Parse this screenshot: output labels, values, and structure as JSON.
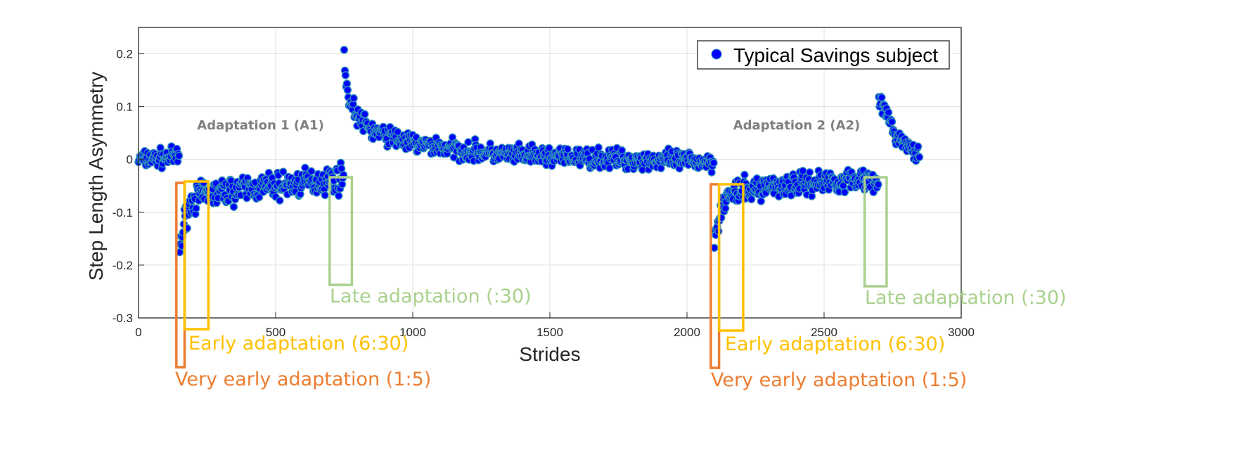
{
  "chart_data": {
    "type": "scatter",
    "xlabel": "Strides",
    "ylabel": "Step Length Asymmetry",
    "xlim": [
      0,
      3000
    ],
    "ylim": [
      -0.3,
      0.25
    ],
    "xticks": [
      0,
      500,
      1000,
      1500,
      2000,
      2500,
      3000
    ],
    "yticks": [
      0.2,
      0.1,
      0,
      -0.1,
      -0.2,
      -0.3
    ],
    "xtick_labels": [
      "0",
      "500",
      "1000",
      "1500",
      "2000",
      "2500",
      "3000"
    ],
    "ytick_labels": [
      "0.2",
      "0.1",
      "0",
      "-0.1",
      "-0.2",
      "-0.3"
    ],
    "grid": true,
    "legend_position": "top-right",
    "marker_fill": "#0000ff",
    "marker_edge": "#2f8fb8",
    "series": [
      {
        "name": "Typical Savings subject",
        "segments": [
          {
            "phase": "baseline",
            "x_start": 0,
            "x_end": 150,
            "trend": [
              [
                0,
                0.0
              ],
              [
                150,
                0.005
              ]
            ],
            "noise": 0.012
          },
          {
            "phase": "adaptation-1",
            "x_start": 150,
            "x_end": 750,
            "trend": [
              [
                150,
                -0.17
              ],
              [
                160,
                -0.14
              ],
              [
                175,
                -0.1
              ],
              [
                200,
                -0.075
              ],
              [
                260,
                -0.065
              ],
              [
                400,
                -0.055
              ],
              [
                600,
                -0.045
              ],
              [
                750,
                -0.035
              ]
            ],
            "noise": 0.018
          },
          {
            "phase": "post-adaptation-1",
            "x_start": 750,
            "x_end": 2100,
            "trend": [
              [
                750,
                0.2
              ],
              [
                755,
                0.165
              ],
              [
                765,
                0.115
              ],
              [
                800,
                0.08
              ],
              [
                850,
                0.055
              ],
              [
                1000,
                0.03
              ],
              [
                1300,
                0.01
              ],
              [
                1600,
                0.003
              ],
              [
                2100,
                -0.005
              ]
            ],
            "noise": 0.013
          },
          {
            "phase": "adaptation-2",
            "x_start": 2100,
            "x_end": 2700,
            "trend": [
              [
                2100,
                -0.15
              ],
              [
                2110,
                -0.12
              ],
              [
                2130,
                -0.085
              ],
              [
                2160,
                -0.065
              ],
              [
                2300,
                -0.05
              ],
              [
                2500,
                -0.042
              ],
              [
                2700,
                -0.035
              ]
            ],
            "noise": 0.016
          },
          {
            "phase": "post-adaptation-2",
            "x_start": 2700,
            "x_end": 2850,
            "trend": [
              [
                2700,
                0.115
              ],
              [
                2720,
                0.095
              ],
              [
                2760,
                0.045
              ],
              [
                2850,
                0.005
              ]
            ],
            "noise": 0.01
          }
        ]
      }
    ],
    "annotations": [
      {
        "text": "Adaptation 1 (A1)",
        "x": 445,
        "y": 0.065,
        "color": "#7f7f7f"
      },
      {
        "text": "Adaptation 2 (A2)",
        "x": 2400,
        "y": 0.065,
        "color": "#7f7f7f"
      }
    ],
    "windows": [
      {
        "label": "Very early adaptation (1:5)",
        "color": "#ed7d31",
        "x_start": 138,
        "x_end": 168,
        "group": "A1"
      },
      {
        "label": "Early adaptation (6:30)",
        "color": "#ffc000",
        "x_start": 168,
        "x_end": 255,
        "group": "A1"
      },
      {
        "label": "Late adaptation (:30)",
        "color": "#a9d18e",
        "x_start": 697,
        "x_end": 778,
        "group": "A1"
      },
      {
        "label": "Very early adaptation (1:5)",
        "color": "#ed7d31",
        "x_start": 2087,
        "x_end": 2117,
        "group": "A2"
      },
      {
        "label": "Early adaptation (6:30)",
        "color": "#ffc000",
        "x_start": 2117,
        "x_end": 2205,
        "group": "A2"
      },
      {
        "label": "Late adaptation (:30)",
        "color": "#a9d18e",
        "x_start": 2648,
        "x_end": 2728,
        "group": "A2"
      }
    ]
  }
}
